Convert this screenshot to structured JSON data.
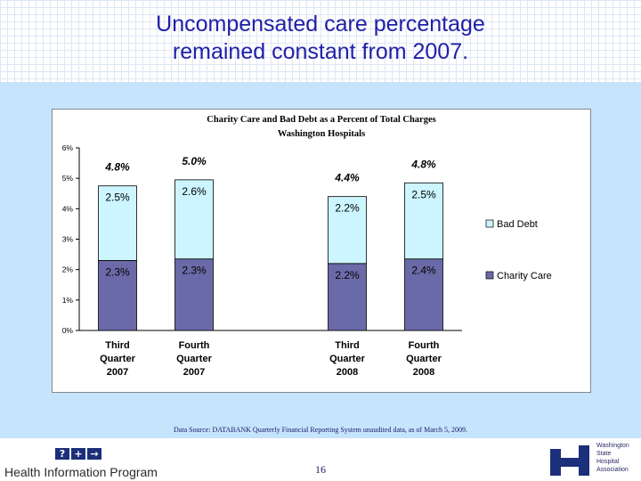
{
  "slide": {
    "title_line1": "Uncompensated care percentage",
    "title_line2": "remained constant from 2007.",
    "source": "Data Source: DATABANK Quarterly Financial Reporting System unaudited data, as of March 5, 2009.",
    "page_number": "16",
    "footer_program": "Health Information Program",
    "footer_icons": [
      "?",
      "+",
      "→"
    ],
    "org_name_lines": [
      "Washington",
      "State",
      "Hospital",
      "Association"
    ]
  },
  "chart_data": {
    "type": "bar",
    "stacked": true,
    "title_line1": "Charity Care and Bad Debt as a Percent of Total Charges",
    "title_line2": "Washington Hospitals",
    "categories": [
      [
        "Third",
        "Quarter",
        "2007"
      ],
      [
        "Fourth",
        "Quarter",
        "2007"
      ],
      [
        "",
        "",
        ""
      ],
      [
        "Third",
        "Quarter",
        "2008"
      ],
      [
        "Fourth",
        "Quarter",
        "2008"
      ]
    ],
    "series": [
      {
        "name": "Charity Care",
        "color": "#6b6aa8",
        "values": [
          2.3,
          2.35,
          null,
          2.2,
          2.35
        ],
        "labels": [
          "2.3%",
          "2.3%",
          "",
          "2.2%",
          "2.4%"
        ]
      },
      {
        "name": "Bad Debt",
        "color": "#ccf5ff",
        "values": [
          2.45,
          2.6,
          null,
          2.2,
          2.5
        ],
        "labels": [
          "2.5%",
          "2.6%",
          "",
          "2.2%",
          "2.5%"
        ]
      }
    ],
    "totals": [
      "4.8%",
      "5.0%",
      "",
      "4.4%",
      "4.8%"
    ],
    "ylim": [
      0,
      6
    ],
    "yticks": [
      "0%",
      "1%",
      "2%",
      "3%",
      "4%",
      "5%",
      "6%"
    ],
    "legend_position": "right",
    "grid": false
  }
}
